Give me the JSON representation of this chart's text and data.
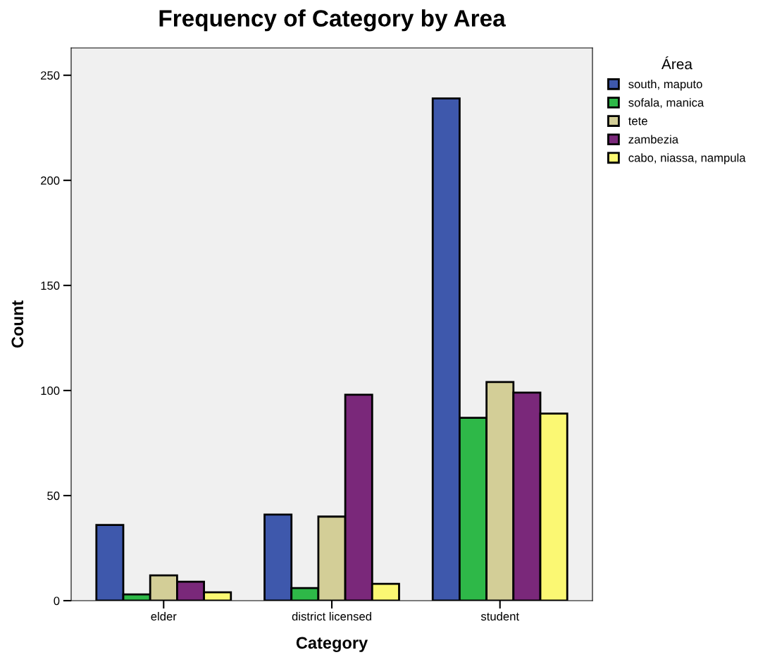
{
  "chart_data": {
    "type": "bar",
    "title": "Frequency of Category by Area",
    "xlabel": "Category",
    "ylabel": "Count",
    "legend_title": "Área",
    "legend": "right",
    "grid": false,
    "categories": [
      "elder",
      "district licensed",
      "student"
    ],
    "ylim": [
      0,
      263
    ],
    "yticks": [
      0,
      50,
      100,
      150,
      200,
      250
    ],
    "series": [
      {
        "name": "south, maputo",
        "color": "#3e58ac",
        "values": [
          36,
          41,
          239
        ]
      },
      {
        "name": "sofala, manica",
        "color": "#2eb848",
        "values": [
          3,
          6,
          87
        ]
      },
      {
        "name": "tete",
        "color": "#d3ce97",
        "values": [
          12,
          40,
          104
        ]
      },
      {
        "name": "zambezia",
        "color": "#7a287a",
        "values": [
          9,
          98,
          99
        ]
      },
      {
        "name": "cabo, niassa, nampula",
        "color": "#fbf873",
        "values": [
          4,
          8,
          89
        ]
      }
    ]
  }
}
